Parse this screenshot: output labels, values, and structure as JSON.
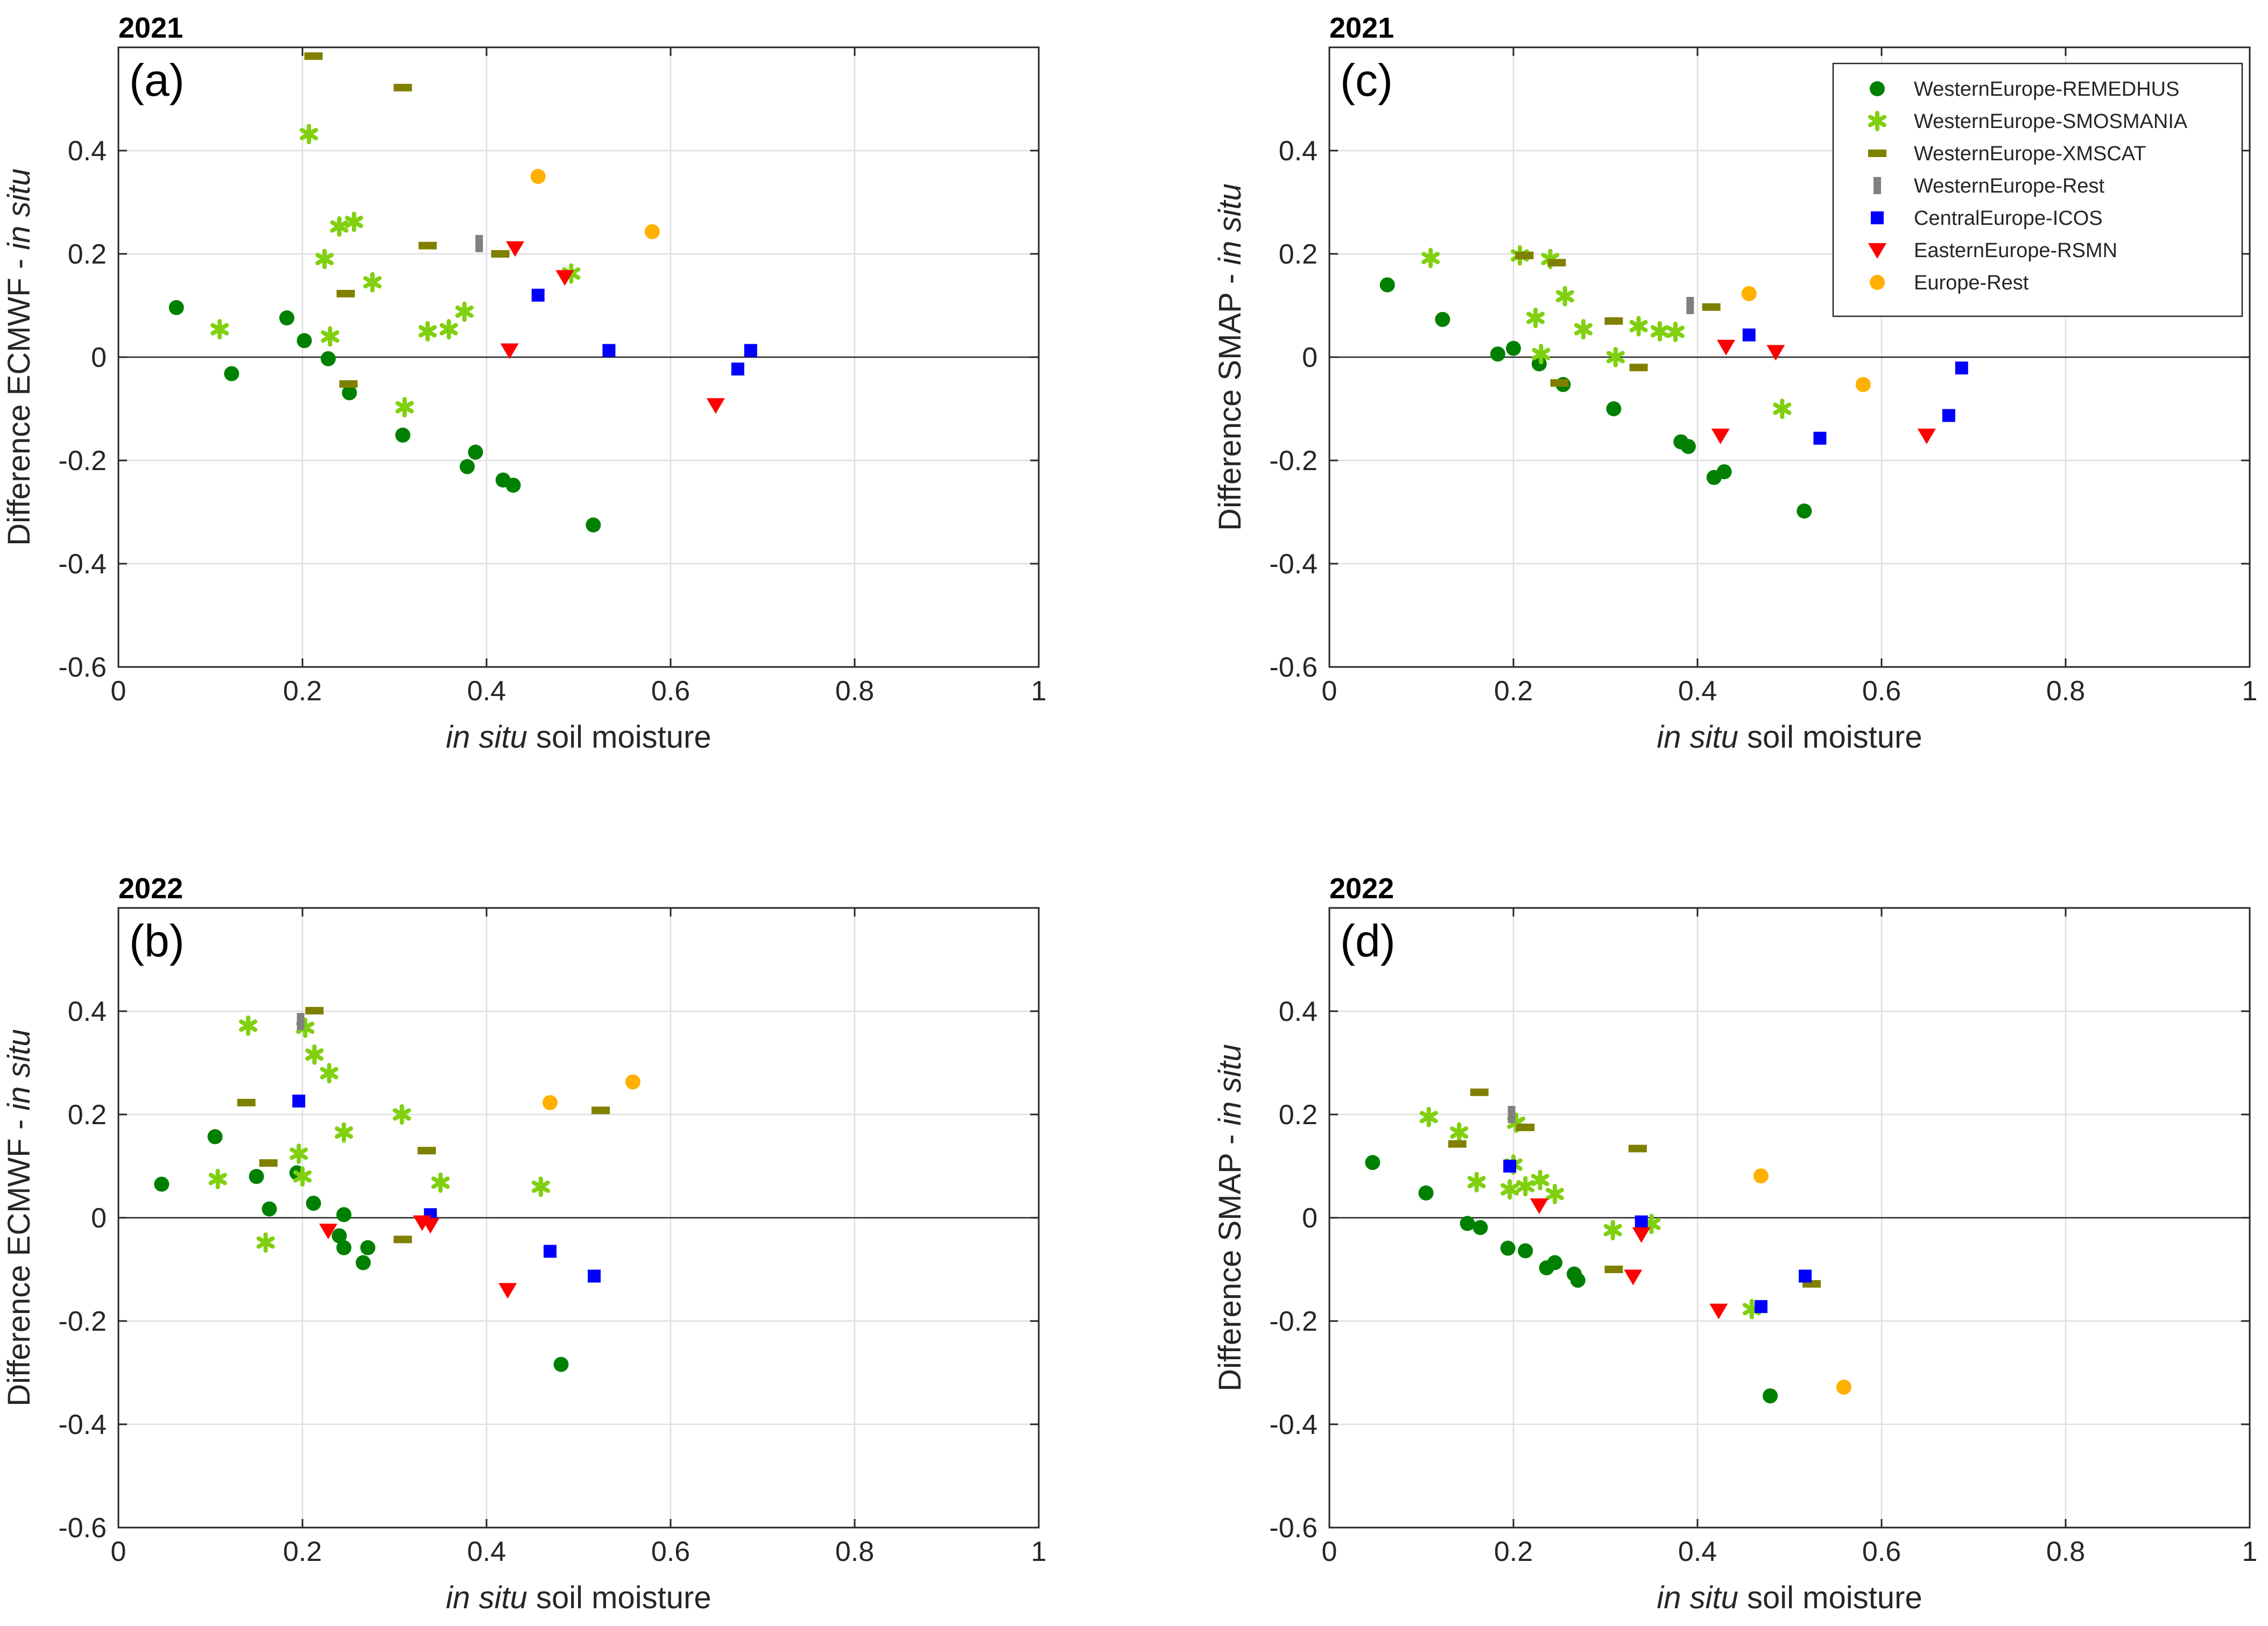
{
  "chart_data": [
    {
      "id": "a",
      "type": "scatter",
      "year_title": "2021",
      "panel_label": "(a)",
      "ylabel": "Difference ECMWF - ",
      "ylabel_italic": "in situ",
      "xlabel_italic": "in situ",
      "xlabel": " soil moisture",
      "xlim": [
        0,
        1
      ],
      "ylim": [
        -0.6,
        0.6
      ],
      "xticks": [
        0,
        0.2,
        0.4,
        0.6,
        0.8,
        1
      ],
      "yticks": [
        -0.6,
        -0.4,
        -0.2,
        0,
        0.2,
        0.4
      ],
      "xtick_labels": [
        "0",
        "0.2",
        "0.4",
        "0.6",
        "0.8",
        "1"
      ],
      "ytick_labels": [
        "-0.6",
        "-0.4",
        "-0.2",
        "0",
        "0.2",
        "0.4"
      ],
      "series": [
        {
          "name": "WesternEurope-REMEDHUS",
          "x": [
            0.063,
            0.123,
            0.183,
            0.202,
            0.228,
            0.251,
            0.309,
            0.379,
            0.388,
            0.418,
            0.429,
            0.516
          ],
          "y": [
            0.096,
            -0.032,
            0.076,
            0.032,
            -0.003,
            -0.069,
            -0.151,
            -0.212,
            -0.184,
            -0.238,
            -0.248,
            -0.325
          ]
        },
        {
          "name": "WesternEurope-SMOSMANIA",
          "x": [
            0.11,
            0.207,
            0.224,
            0.23,
            0.24,
            0.256,
            0.276,
            0.311,
            0.336,
            0.359,
            0.376,
            0.492
          ],
          "y": [
            0.054,
            0.432,
            0.19,
            0.04,
            0.253,
            0.262,
            0.145,
            -0.097,
            0.05,
            0.054,
            0.088,
            0.162
          ]
        },
        {
          "name": "WesternEurope-XMSCAT",
          "x": [
            0.212,
            0.247,
            0.25,
            0.309,
            0.336,
            0.415
          ],
          "y": [
            0.583,
            0.123,
            -0.052,
            0.522,
            0.216,
            0.2
          ]
        },
        {
          "name": "WesternEurope-Rest",
          "x": [
            0.392
          ],
          "y": [
            0.22
          ]
        },
        {
          "name": "CentralEurope-ICOS",
          "x": [
            0.456,
            0.533,
            0.673,
            0.687
          ],
          "y": [
            0.12,
            0.013,
            -0.023,
            0.013
          ]
        },
        {
          "name": "EasternEurope-RSMN",
          "x": [
            0.425,
            0.431,
            0.485,
            0.649
          ],
          "y": [
            0.013,
            0.211,
            0.155,
            -0.093
          ]
        },
        {
          "name": "Europe-Rest",
          "x": [
            0.456,
            0.58
          ],
          "y": [
            0.35,
            0.243
          ]
        }
      ]
    },
    {
      "id": "b",
      "type": "scatter",
      "year_title": "2022",
      "panel_label": "(b)",
      "ylabel": "Difference ECMWF - ",
      "ylabel_italic": "in situ",
      "xlabel_italic": "in situ",
      "xlabel": " soil moisture",
      "xlim": [
        0,
        1
      ],
      "ylim": [
        -0.6,
        0.6
      ],
      "xticks": [
        0,
        0.2,
        0.4,
        0.6,
        0.8,
        1
      ],
      "yticks": [
        -0.6,
        -0.4,
        -0.2,
        0,
        0.2,
        0.4
      ],
      "xtick_labels": [
        "0",
        "0.2",
        "0.4",
        "0.6",
        "0.8",
        "1"
      ],
      "ytick_labels": [
        "-0.6",
        "-0.4",
        "-0.2",
        "0",
        "0.2",
        "0.4"
      ],
      "series": [
        {
          "name": "WesternEurope-REMEDHUS",
          "x": [
            0.047,
            0.105,
            0.15,
            0.164,
            0.194,
            0.212,
            0.24,
            0.245,
            0.245,
            0.266,
            0.271,
            0.481
          ],
          "y": [
            0.065,
            0.157,
            0.08,
            0.017,
            0.087,
            0.028,
            -0.035,
            -0.058,
            0.006,
            -0.087,
            -0.058,
            -0.284
          ]
        },
        {
          "name": "WesternEurope-SMOSMANIA",
          "x": [
            0.108,
            0.141,
            0.16,
            0.196,
            0.2,
            0.203,
            0.213,
            0.229,
            0.245,
            0.308,
            0.35,
            0.459
          ],
          "y": [
            0.075,
            0.372,
            -0.048,
            0.124,
            0.08,
            0.368,
            0.316,
            0.28,
            0.165,
            0.2,
            0.068,
            0.06
          ]
        },
        {
          "name": "WesternEurope-XMSCAT",
          "x": [
            0.139,
            0.163,
            0.213,
            0.309,
            0.335,
            0.524
          ],
          "y": [
            0.223,
            0.106,
            0.401,
            -0.042,
            0.13,
            0.208
          ]
        },
        {
          "name": "WesternEurope-Rest",
          "x": [
            0.198
          ],
          "y": [
            0.38
          ]
        },
        {
          "name": "CentralEurope-ICOS",
          "x": [
            0.196,
            0.339,
            0.469,
            0.517
          ],
          "y": [
            0.226,
            0.006,
            -0.065,
            -0.113
          ]
        },
        {
          "name": "EasternEurope-RSMN",
          "x": [
            0.228,
            0.33,
            0.339,
            0.423
          ],
          "y": [
            -0.025,
            -0.009,
            -0.014,
            -0.14
          ]
        },
        {
          "name": "Europe-Rest",
          "x": [
            0.469,
            0.559
          ],
          "y": [
            0.223,
            0.263
          ]
        }
      ]
    },
    {
      "id": "c",
      "type": "scatter",
      "year_title": "2021",
      "panel_label": "(c)",
      "ylabel": "Difference SMAP - ",
      "ylabel_italic": "in situ",
      "xlabel_italic": "in situ",
      "xlabel": " soil moisture",
      "xlim": [
        0,
        1
      ],
      "ylim": [
        -0.6,
        0.6
      ],
      "xticks": [
        0,
        0.2,
        0.4,
        0.6,
        0.8,
        1
      ],
      "yticks": [
        -0.6,
        -0.4,
        -0.2,
        0,
        0.2,
        0.4
      ],
      "xtick_labels": [
        "0",
        "0.2",
        "0.4",
        "0.6",
        "0.8",
        "1"
      ],
      "ytick_labels": [
        "-0.6",
        "-0.4",
        "-0.2",
        "0",
        "0.2",
        "0.4"
      ],
      "series": [
        {
          "name": "WesternEurope-REMEDHUS",
          "x": [
            0.063,
            0.123,
            0.183,
            0.2,
            0.228,
            0.254,
            0.309,
            0.382,
            0.39,
            0.418,
            0.429,
            0.516
          ],
          "y": [
            0.14,
            0.073,
            0.006,
            0.017,
            -0.013,
            -0.053,
            -0.1,
            -0.164,
            -0.173,
            -0.233,
            -0.222,
            -0.298
          ]
        },
        {
          "name": "WesternEurope-SMOSMANIA",
          "x": [
            0.11,
            0.207,
            0.224,
            0.23,
            0.24,
            0.256,
            0.276,
            0.311,
            0.336,
            0.359,
            0.376,
            0.492
          ],
          "y": [
            0.192,
            0.197,
            0.076,
            0.006,
            0.19,
            0.118,
            0.054,
            0.0,
            0.06,
            0.05,
            0.049,
            -0.1
          ]
        },
        {
          "name": "WesternEurope-XMSCAT",
          "x": [
            0.212,
            0.247,
            0.25,
            0.309,
            0.336,
            0.415
          ],
          "y": [
            0.197,
            0.183,
            -0.05,
            0.07,
            -0.02,
            0.097
          ]
        },
        {
          "name": "WesternEurope-Rest",
          "x": [
            0.392
          ],
          "y": [
            0.1
          ]
        },
        {
          "name": "CentralEurope-ICOS",
          "x": [
            0.456,
            0.533,
            0.673,
            0.687
          ],
          "y": [
            0.043,
            -0.157,
            -0.113,
            -0.021
          ]
        },
        {
          "name": "EasternEurope-RSMN",
          "x": [
            0.425,
            0.431,
            0.485,
            0.649
          ],
          "y": [
            -0.152,
            0.02,
            0.01,
            -0.152
          ]
        },
        {
          "name": "Europe-Rest",
          "x": [
            0.456,
            0.58
          ],
          "y": [
            0.123,
            -0.053
          ]
        }
      ]
    },
    {
      "id": "d",
      "type": "scatter",
      "year_title": "2022",
      "panel_label": "(d)",
      "ylabel": "Difference SMAP - ",
      "ylabel_italic": "in situ",
      "xlabel_italic": "in situ",
      "xlabel": " soil moisture",
      "xlim": [
        0,
        1
      ],
      "ylim": [
        -0.6,
        0.6
      ],
      "xticks": [
        0,
        0.2,
        0.4,
        0.6,
        0.8,
        1
      ],
      "yticks": [
        -0.6,
        -0.4,
        -0.2,
        0,
        0.2,
        0.4
      ],
      "xtick_labels": [
        "0",
        "0.2",
        "0.4",
        "0.6",
        "0.8",
        "1"
      ],
      "ytick_labels": [
        "-0.6",
        "-0.4",
        "-0.2",
        "0",
        "0.2",
        "0.4"
      ],
      "series": [
        {
          "name": "WesternEurope-REMEDHUS",
          "x": [
            0.047,
            0.105,
            0.15,
            0.164,
            0.194,
            0.213,
            0.236,
            0.245,
            0.266,
            0.27,
            0.479
          ],
          "y": [
            0.107,
            0.048,
            -0.011,
            -0.019,
            -0.059,
            -0.064,
            -0.097,
            -0.087,
            -0.109,
            -0.121,
            -0.345
          ]
        },
        {
          "name": "WesternEurope-SMOSMANIA",
          "x": [
            0.108,
            0.141,
            0.16,
            0.196,
            0.2,
            0.203,
            0.213,
            0.229,
            0.245,
            0.308,
            0.35,
            0.459
          ],
          "y": [
            0.195,
            0.165,
            0.069,
            0.055,
            0.103,
            0.184,
            0.061,
            0.073,
            0.046,
            -0.024,
            -0.012,
            -0.177
          ]
        },
        {
          "name": "WesternEurope-XMSCAT",
          "x": [
            0.139,
            0.163,
            0.213,
            0.309,
            0.335,
            0.524
          ],
          "y": [
            0.143,
            0.243,
            0.175,
            -0.1,
            0.134,
            -0.128
          ]
        },
        {
          "name": "WesternEurope-Rest",
          "x": [
            0.198
          ],
          "y": [
            0.2
          ]
        },
        {
          "name": "CentralEurope-ICOS",
          "x": [
            0.196,
            0.339,
            0.469,
            0.517
          ],
          "y": [
            0.1,
            -0.008,
            -0.172,
            -0.113
          ]
        },
        {
          "name": "EasternEurope-RSMN",
          "x": [
            0.228,
            0.33,
            0.339,
            0.423
          ],
          "y": [
            0.024,
            -0.114,
            -0.032,
            -0.18
          ]
        },
        {
          "name": "Europe-Rest",
          "x": [
            0.469,
            0.559
          ],
          "y": [
            0.081,
            -0.328
          ]
        }
      ]
    }
  ],
  "legend": {
    "placement": "top-right of panel (c)",
    "entries": [
      {
        "name": "WesternEurope-REMEDHUS",
        "marker": "circle",
        "color": "#008000"
      },
      {
        "name": "WesternEurope-SMOSMANIA",
        "marker": "asterisk",
        "color": "#80d010"
      },
      {
        "name": "WesternEurope-XMSCAT",
        "marker": "dash",
        "color": "#808000"
      },
      {
        "name": "WesternEurope-Rest",
        "marker": "vbar",
        "color": "#808080"
      },
      {
        "name": "CentralEurope-ICOS",
        "marker": "square",
        "color": "#0000ff"
      },
      {
        "name": "EasternEurope-RSMN",
        "marker": "triangle-down",
        "color": "#ff0000"
      },
      {
        "name": "Europe-Rest",
        "marker": "circle",
        "color": "#ffb000"
      }
    ]
  }
}
